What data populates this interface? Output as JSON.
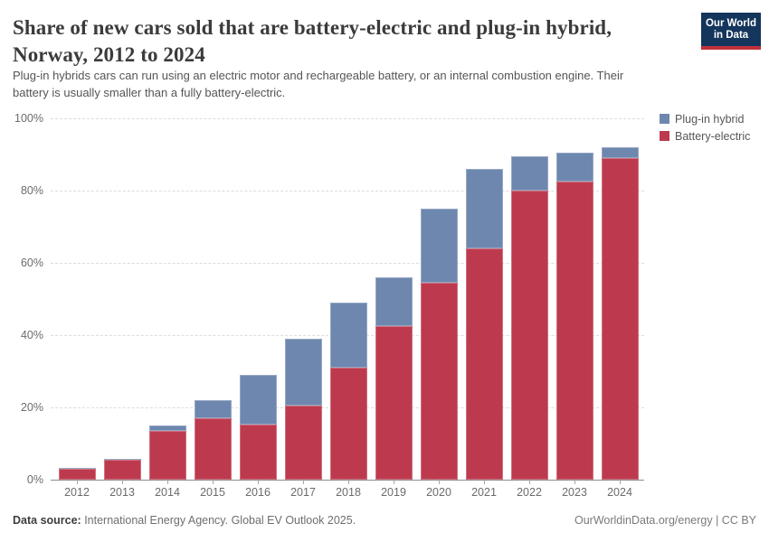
{
  "header": {
    "title_lines": [
      "Share of new cars sold that are battery-electric and plug-in hybrid,",
      "Norway, 2012 to 2024"
    ],
    "subtitle_lines": [
      "Plug-in hybrids cars can run using an electric motor and rechargeable battery, or an internal combustion engine. Their",
      "battery is usually smaller than a fully battery-electric."
    ],
    "logo": {
      "line1": "Our World",
      "line2": "in Data",
      "bg_color": "#14355c",
      "accent_color": "#c1303c"
    }
  },
  "legend": {
    "items": [
      {
        "label": "Plug-in hybrid",
        "color": "#6e87ae"
      },
      {
        "label": "Battery-electric",
        "color": "#bd3a4e"
      }
    ]
  },
  "chart_data": {
    "type": "bar",
    "stacked": true,
    "categories": [
      2012,
      2013,
      2014,
      2015,
      2016,
      2017,
      2018,
      2019,
      2020,
      2021,
      2022,
      2023,
      2024
    ],
    "series": [
      {
        "name": "Battery-electric",
        "color": "#bd3a4e",
        "values": [
          2.9,
          5.5,
          13.5,
          17,
          15.3,
          20.6,
          31,
          42.5,
          54.5,
          64,
          80,
          82.5,
          89
        ]
      },
      {
        "name": "Plug-in hybrid",
        "color": "#6e87ae",
        "values": [
          0.4,
          0.3,
          1.5,
          5,
          13.7,
          18.4,
          18,
          13.5,
          20.5,
          22,
          9.5,
          8,
          3
        ]
      }
    ],
    "title": "Share of new cars sold that are battery-electric and plug-in hybrid, Norway, 2012 to 2024",
    "xlabel": "",
    "ylabel": "",
    "ylim": [
      0,
      100
    ],
    "yticks": [
      0,
      20,
      40,
      60,
      80,
      100
    ],
    "ytick_suffix": "%",
    "grid": "horizontal-dashed",
    "legend_position": "top-right"
  },
  "footer": {
    "source_label": "Data source:",
    "source_text": " International Energy Agency. Global EV Outlook 2025.",
    "credit": "OurWorldinData.org/energy | CC BY"
  }
}
